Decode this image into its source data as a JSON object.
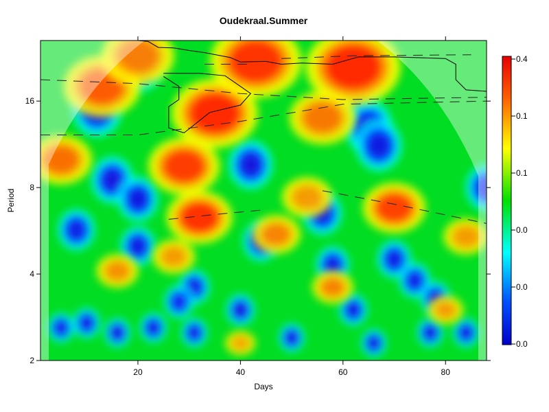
{
  "chart_data": {
    "type": "heatmap",
    "title": "Oudekraal.Summer",
    "xlabel": "Days",
    "ylabel": "Period",
    "x_range": [
      1,
      88
    ],
    "x_ticks": [
      20,
      40,
      60,
      80
    ],
    "y_scale": "log2",
    "y_range": [
      2,
      26
    ],
    "y_ticks": [
      2,
      4,
      8,
      16
    ],
    "colorbar": {
      "labels": [
        "0.4",
        "0.1",
        "0.1",
        "0.0",
        "0.0",
        "0.0"
      ],
      "colors": [
        "#0000c8",
        "#0064ff",
        "#00ffff",
        "#00e000",
        "#ffff00",
        "#ff6400",
        "#e60000"
      ]
    },
    "power_blobs": [
      {
        "x": 35,
        "period": 14.5,
        "power": 1.0
      },
      {
        "x": 29,
        "period": 9.5,
        "power": 0.85
      },
      {
        "x": 32,
        "period": 6.3,
        "power": 0.95
      },
      {
        "x": 62,
        "period": 21,
        "power": 1.0
      },
      {
        "x": 43,
        "period": 22,
        "power": 0.9
      },
      {
        "x": 70,
        "period": 6.8,
        "power": 0.8
      },
      {
        "x": 13,
        "period": 18,
        "power": 0.65
      },
      {
        "x": 5,
        "period": 10,
        "power": 0.55
      },
      {
        "x": 47,
        "period": 5.5,
        "power": 0.45
      },
      {
        "x": 58,
        "period": 3.6,
        "power": 0.45
      },
      {
        "x": 16,
        "period": 4.1,
        "power": 0.4
      },
      {
        "x": 27,
        "period": 4.6,
        "power": 0.35
      },
      {
        "x": 20,
        "period": 23,
        "power": 0.45
      },
      {
        "x": 56,
        "period": 14,
        "power": 0.5
      },
      {
        "x": 40,
        "period": 2.3,
        "power": 0.3
      },
      {
        "x": 80,
        "period": 3.0,
        "power": 0.35
      },
      {
        "x": 53,
        "period": 7.4,
        "power": 0.35
      },
      {
        "x": 84,
        "period": 5.4,
        "power": 0.35
      }
    ],
    "low_power_blobs": [
      {
        "x": 20,
        "period": 22,
        "depth": 0.6
      },
      {
        "x": 12,
        "period": 15,
        "depth": 0.6
      },
      {
        "x": 62,
        "period": 18,
        "depth": 0.65
      },
      {
        "x": 65,
        "period": 13,
        "depth": 0.6
      },
      {
        "x": 67,
        "period": 11.2,
        "depth": 0.65
      },
      {
        "x": 42,
        "period": 9.6,
        "depth": 0.75
      },
      {
        "x": 15,
        "period": 8.5,
        "depth": 0.7
      },
      {
        "x": 20,
        "period": 7.3,
        "depth": 0.65
      },
      {
        "x": 8,
        "period": 5.7,
        "depth": 0.55
      },
      {
        "x": 20,
        "period": 5.0,
        "depth": 0.6
      },
      {
        "x": 56,
        "period": 6.5,
        "depth": 0.6
      },
      {
        "x": 44,
        "period": 5.2,
        "depth": 0.55
      },
      {
        "x": 70,
        "period": 4.5,
        "depth": 0.55
      },
      {
        "x": 74,
        "period": 3.8,
        "depth": 0.5
      },
      {
        "x": 58,
        "period": 4.3,
        "depth": 0.55
      },
      {
        "x": 88,
        "period": 8.0,
        "depth": 0.45
      },
      {
        "x": 40,
        "period": 3.0,
        "depth": 0.7
      },
      {
        "x": 50,
        "period": 2.4,
        "depth": 0.7
      },
      {
        "x": 62,
        "period": 3.0,
        "depth": 0.6
      },
      {
        "x": 66,
        "period": 2.3,
        "depth": 0.65
      },
      {
        "x": 77,
        "period": 2.5,
        "depth": 0.65
      },
      {
        "x": 84,
        "period": 2.5,
        "depth": 0.6
      },
      {
        "x": 10,
        "period": 2.7,
        "depth": 0.55
      },
      {
        "x": 16,
        "period": 2.5,
        "depth": 0.7
      },
      {
        "x": 23,
        "period": 2.6,
        "depth": 0.6
      },
      {
        "x": 31,
        "period": 3.6,
        "depth": 0.55
      },
      {
        "x": 31,
        "period": 2.5,
        "depth": 0.55
      },
      {
        "x": 5,
        "period": 2.6,
        "depth": 0.5
      },
      {
        "x": 28,
        "period": 3.2,
        "depth": 0.35
      },
      {
        "x": 78,
        "period": 3.3,
        "depth": 0.45
      }
    ],
    "significance_contours": [
      {
        "points": [
          [
            25,
            20
          ],
          [
            32,
            20
          ],
          [
            37,
            19.6
          ],
          [
            40,
            18
          ],
          [
            42,
            17
          ],
          [
            40,
            15.5
          ],
          [
            34,
            14.6
          ],
          [
            29,
            12.4
          ],
          [
            26,
            12.9
          ],
          [
            26,
            15.3
          ],
          [
            28,
            16.2
          ],
          [
            28,
            18
          ],
          [
            25,
            19.5
          ]
        ]
      },
      {
        "points": [
          [
            20,
            26
          ],
          [
            22,
            25.8
          ],
          [
            24,
            24.6
          ],
          [
            27,
            24.5
          ],
          [
            30,
            24
          ],
          [
            33,
            23.6
          ],
          [
            38,
            22.7
          ],
          [
            40,
            21.9
          ],
          [
            45,
            22
          ],
          [
            48,
            21.5
          ],
          [
            52,
            21.7
          ],
          [
            58,
            21.5
          ],
          [
            63,
            22.8
          ],
          [
            70,
            22.8
          ],
          [
            80,
            22.5
          ],
          [
            82,
            21.5
          ],
          [
            82,
            19
          ],
          [
            84,
            17.5
          ],
          [
            88,
            17.3
          ]
        ]
      }
    ],
    "ridge_lines": [
      {
        "points": [
          [
            1,
            19
          ],
          [
            20,
            18.4
          ],
          [
            40,
            17
          ],
          [
            60,
            16.2
          ],
          [
            88,
            16.5
          ]
        ]
      },
      {
        "points": [
          [
            1,
            12.2
          ],
          [
            20,
            12.2
          ],
          [
            40,
            13.6
          ],
          [
            60,
            15.6
          ],
          [
            88,
            16
          ]
        ]
      },
      {
        "points": [
          [
            26,
            6.2
          ],
          [
            37,
            6.5
          ],
          [
            45,
            6.7
          ]
        ]
      },
      {
        "points": [
          [
            56,
            7.8
          ],
          [
            70,
            7.0
          ],
          [
            88,
            6.0
          ]
        ]
      },
      {
        "points": [
          [
            48,
            22.5
          ],
          [
            62,
            23
          ],
          [
            85,
            23.2
          ]
        ]
      },
      {
        "points": [
          [
            33,
            21.5
          ],
          [
            42,
            21.5
          ]
        ]
      }
    ]
  }
}
